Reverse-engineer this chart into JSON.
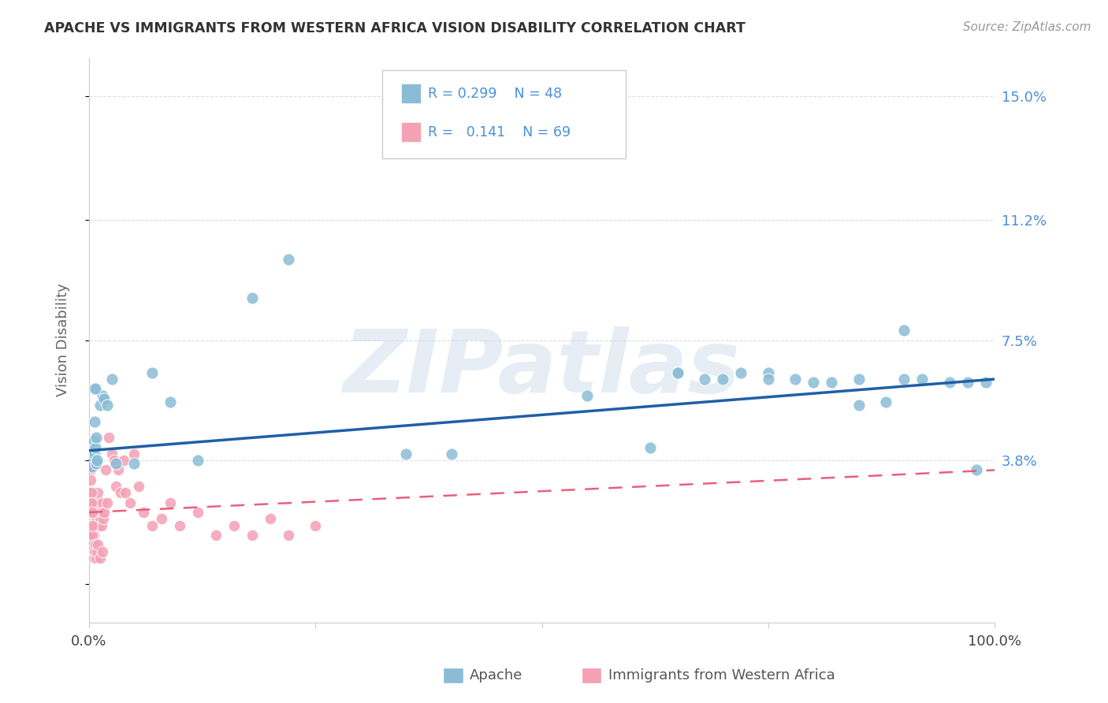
{
  "title": "APACHE VS IMMIGRANTS FROM WESTERN AFRICA VISION DISABILITY CORRELATION CHART",
  "source": "Source: ZipAtlas.com",
  "ylabel": "Vision Disability",
  "yticks": [
    0.0,
    0.038,
    0.075,
    0.112,
    0.15
  ],
  "ytick_labels": [
    "",
    "3.8%",
    "7.5%",
    "11.2%",
    "15.0%"
  ],
  "xlim": [
    0.0,
    1.0
  ],
  "ylim": [
    -0.012,
    0.162
  ],
  "apache_R": 0.299,
  "apache_N": 48,
  "immig_R": 0.141,
  "immig_N": 69,
  "apache_color": "#8abcd6",
  "immig_color": "#f4a0b5",
  "apache_line_color": "#1f5fa6",
  "immig_line_color": "#e8607a",
  "watermark": "ZIPatlas",
  "background_color": "#ffffff",
  "apache_x": [
    0.002,
    0.003,
    0.004,
    0.005,
    0.006,
    0.007,
    0.008,
    0.009,
    0.012,
    0.015,
    0.017,
    0.02,
    0.025,
    0.03,
    0.05,
    0.07,
    0.09,
    0.12,
    0.18,
    0.22,
    0.55,
    0.62,
    0.65,
    0.68,
    0.72,
    0.75,
    0.78,
    0.82,
    0.85,
    0.88,
    0.9,
    0.92,
    0.95,
    0.97,
    0.98,
    0.99,
    0.005,
    0.006,
    0.007,
    0.008,
    0.35,
    0.4,
    0.65,
    0.7,
    0.75,
    0.8,
    0.85,
    0.9
  ],
  "apache_y": [
    0.041,
    0.038,
    0.036,
    0.044,
    0.04,
    0.042,
    0.037,
    0.038,
    0.055,
    0.058,
    0.057,
    0.055,
    0.063,
    0.037,
    0.037,
    0.065,
    0.056,
    0.038,
    0.088,
    0.1,
    0.058,
    0.042,
    0.065,
    0.063,
    0.065,
    0.065,
    0.063,
    0.062,
    0.063,
    0.056,
    0.078,
    0.063,
    0.062,
    0.062,
    0.035,
    0.062,
    0.06,
    0.05,
    0.06,
    0.045,
    0.04,
    0.04,
    0.065,
    0.063,
    0.063,
    0.062,
    0.055,
    0.063
  ],
  "immig_x": [
    0.001,
    0.001,
    0.002,
    0.002,
    0.003,
    0.003,
    0.004,
    0.004,
    0.005,
    0.005,
    0.006,
    0.006,
    0.007,
    0.007,
    0.008,
    0.008,
    0.009,
    0.01,
    0.011,
    0.012,
    0.013,
    0.014,
    0.015,
    0.016,
    0.017,
    0.018,
    0.02,
    0.022,
    0.025,
    0.028,
    0.03,
    0.032,
    0.035,
    0.038,
    0.04,
    0.045,
    0.05,
    0.055,
    0.06,
    0.07,
    0.08,
    0.09,
    0.1,
    0.12,
    0.14,
    0.16,
    0.18,
    0.2,
    0.22,
    0.25,
    0.001,
    0.002,
    0.003,
    0.004,
    0.005,
    0.006,
    0.007,
    0.008,
    0.009,
    0.01,
    0.012,
    0.015,
    0.001,
    0.002,
    0.002,
    0.003,
    0.003,
    0.004,
    0.004
  ],
  "immig_y": [
    0.028,
    0.022,
    0.025,
    0.02,
    0.018,
    0.022,
    0.018,
    0.025,
    0.015,
    0.022,
    0.018,
    0.025,
    0.02,
    0.018,
    0.02,
    0.022,
    0.025,
    0.028,
    0.018,
    0.02,
    0.022,
    0.018,
    0.025,
    0.02,
    0.022,
    0.035,
    0.025,
    0.045,
    0.04,
    0.038,
    0.03,
    0.035,
    0.028,
    0.038,
    0.028,
    0.025,
    0.04,
    0.03,
    0.022,
    0.018,
    0.02,
    0.025,
    0.018,
    0.022,
    0.015,
    0.018,
    0.015,
    0.02,
    0.015,
    0.018,
    0.015,
    0.012,
    0.01,
    0.015,
    0.008,
    0.01,
    0.012,
    0.008,
    0.01,
    0.012,
    0.008,
    0.01,
    0.038,
    0.035,
    0.032,
    0.028,
    0.025,
    0.022,
    0.018
  ]
}
